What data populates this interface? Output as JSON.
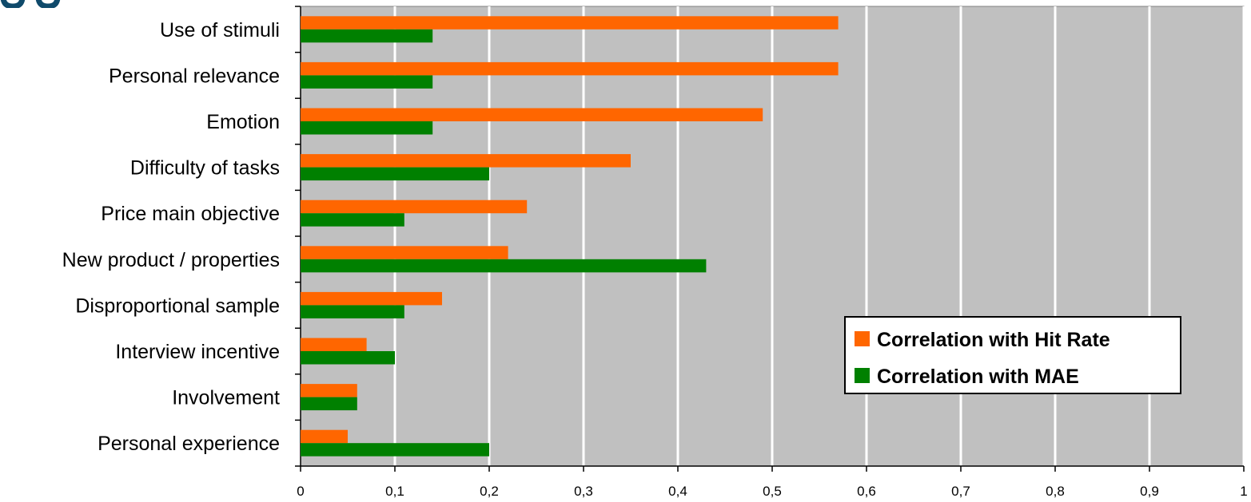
{
  "chart_data": {
    "type": "bar",
    "orientation": "horizontal",
    "categories": [
      "Use of stimuli",
      "Personal relevance",
      "Emotion",
      "Difficulty of tasks",
      "Price main objective",
      "New product / properties",
      "Disproportional sample",
      "Interview incentive",
      "Involvement",
      "Personal experience"
    ],
    "series": [
      {
        "name": "Correlation with Hit Rate",
        "color": "#ff6600",
        "values": [
          0.57,
          0.57,
          0.49,
          0.35,
          0.24,
          0.22,
          0.15,
          0.07,
          0.06,
          0.05
        ]
      },
      {
        "name": "Correlation with MAE",
        "color": "#008000",
        "values": [
          0.14,
          0.14,
          0.14,
          0.2,
          0.11,
          0.43,
          0.11,
          0.1,
          0.06,
          0.2
        ]
      }
    ],
    "xlim": [
      0,
      1
    ],
    "xticks": [
      0,
      0.1,
      0.2,
      0.3,
      0.4,
      0.5,
      0.6,
      0.7,
      0.8,
      0.9,
      1
    ],
    "xtick_labels": [
      "0",
      "0,1",
      "0,2",
      "0,3",
      "0,4",
      "0,5",
      "0,6",
      "0,7",
      "0,8",
      "0,9",
      "1"
    ],
    "grid": true,
    "plot_background": "#c0c0c0",
    "grid_color": "#ffffff",
    "legend_position": "lower-right-inside"
  }
}
